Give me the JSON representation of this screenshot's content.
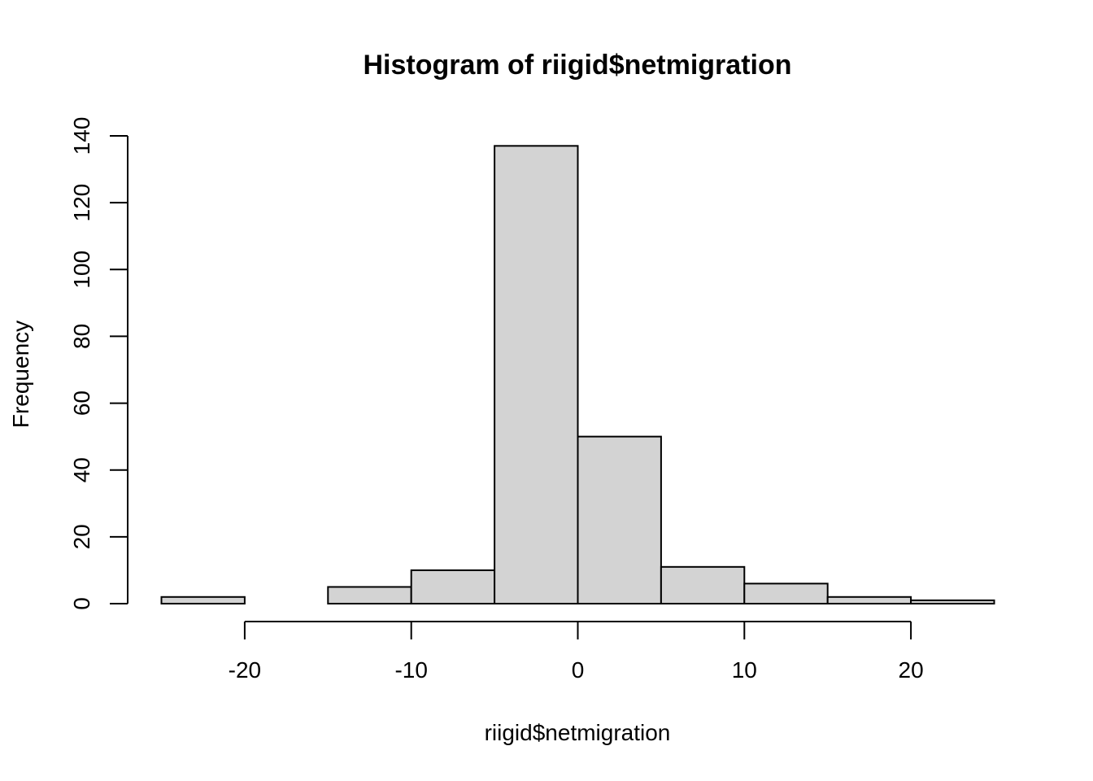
{
  "chart_data": {
    "type": "bar",
    "title": "Histogram of riigid$netmigration",
    "xlabel": "riigid$netmigration",
    "ylabel": "Frequency",
    "bins": [
      {
        "start": -25,
        "end": -20,
        "count": 2
      },
      {
        "start": -20,
        "end": -15,
        "count": 0
      },
      {
        "start": -15,
        "end": -10,
        "count": 5
      },
      {
        "start": -10,
        "end": -5,
        "count": 10
      },
      {
        "start": -5,
        "end": 0,
        "count": 137
      },
      {
        "start": 0,
        "end": 5,
        "count": 50
      },
      {
        "start": 5,
        "end": 10,
        "count": 11
      },
      {
        "start": 10,
        "end": 15,
        "count": 6
      },
      {
        "start": 15,
        "end": 20,
        "count": 2
      },
      {
        "start": 20,
        "end": 25,
        "count": 1
      }
    ],
    "xticks": [
      -20,
      -10,
      0,
      10,
      20
    ],
    "xtick_labels": [
      "-20",
      "-10",
      "0",
      "10",
      "20"
    ],
    "yticks": [
      0,
      20,
      40,
      60,
      80,
      100,
      120,
      140
    ],
    "ytick_labels": [
      "0",
      "20",
      "40",
      "60",
      "80",
      "100",
      "120",
      "140"
    ],
    "xlim": [
      -25,
      25
    ],
    "ylim": [
      0,
      140
    ],
    "colors": {
      "bar_fill": "#d3d3d3",
      "bar_stroke": "#000000",
      "axis": "#000000"
    },
    "grid": false
  }
}
